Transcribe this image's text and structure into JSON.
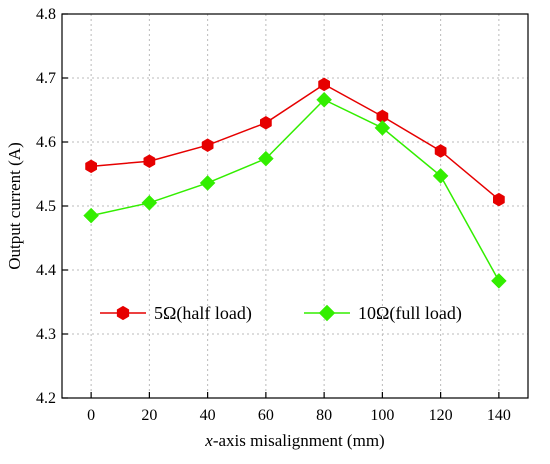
{
  "chart_data": {
    "type": "line",
    "title": "",
    "xlabel_italic": "x",
    "xlabel_rest": "-axis misalignment (mm)",
    "ylabel": "Output current (A)",
    "x": [
      0,
      20,
      40,
      60,
      80,
      100,
      120,
      140
    ],
    "xticks": [
      "0",
      "20",
      "40",
      "60",
      "80",
      "100",
      "120",
      "140"
    ],
    "xlim": [
      -10,
      150
    ],
    "ylim": [
      4.2,
      4.8
    ],
    "yticks": [
      "4.2",
      "4.3",
      "4.4",
      "4.5",
      "4.6",
      "4.7",
      "4.8"
    ],
    "grid": true,
    "legend_position": "lower-center",
    "series": [
      {
        "name": "5Ω(half load)",
        "color": "#e60000",
        "marker": "hexagon",
        "values": [
          4.562,
          4.57,
          4.595,
          4.63,
          4.69,
          4.64,
          4.586,
          4.51
        ]
      },
      {
        "name": "10Ω(full load)",
        "color": "#33ee00",
        "marker": "diamond",
        "values": [
          4.485,
          4.505,
          4.536,
          4.574,
          4.666,
          4.622,
          4.547,
          4.383
        ]
      }
    ]
  }
}
